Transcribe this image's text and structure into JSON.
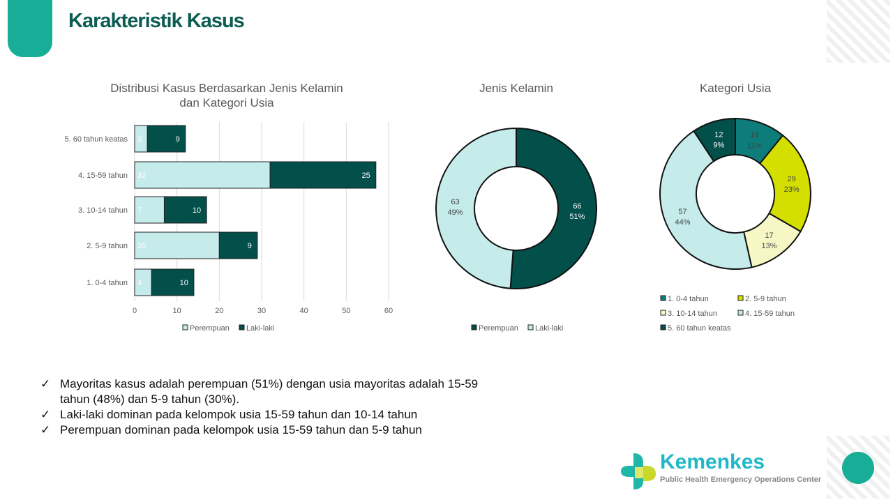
{
  "title": "Karakteristik Kasus",
  "chart_data": [
    {
      "type": "bar",
      "stacked": true,
      "orientation": "horizontal",
      "title": "Distribusi Kasus Berdasarkan Jenis Kelamin dan Kategori Usia",
      "title_lines": [
        "Distribusi Kasus Berdasarkan Jenis Kelamin",
        "dan Kategori Usia"
      ],
      "categories": [
        "5. 60 tahun keatas",
        "4. 15-59 tahun",
        "3. 10-14 tahun",
        "2. 5-9 tahun",
        "1. 0-4 tahun"
      ],
      "series": [
        {
          "name": "Perempuan",
          "color": "#c5ebeb",
          "values": [
            3,
            32,
            7,
            20,
            4
          ]
        },
        {
          "name": "Laki-laki",
          "color": "#034f4a",
          "values": [
            9,
            25,
            10,
            9,
            10
          ]
        }
      ],
      "xlim": [
        0,
        60
      ],
      "xticks": [
        0,
        10,
        20,
        30,
        40,
        50,
        60
      ],
      "grid": true,
      "legend": "bottom"
    },
    {
      "type": "pie",
      "donut": true,
      "title": "Jenis Kelamin",
      "labels": [
        "Perempuan",
        "Laki-laki"
      ],
      "values": [
        66,
        63
      ],
      "percents": [
        "51%",
        "49%"
      ],
      "colors": [
        "#034f4a",
        "#c5ebeb"
      ],
      "legend": "bottom"
    },
    {
      "type": "pie",
      "donut": true,
      "title": "Kategori Usia",
      "labels": [
        "1. 0-4 tahun",
        "2. 5-9 tahun",
        "3. 10-14 tahun",
        "4. 15-59 tahun",
        "5. 60 tahun keatas"
      ],
      "values": [
        14,
        29,
        17,
        57,
        12
      ],
      "percents": [
        "11%",
        "23%",
        "13%",
        "44%",
        "9%"
      ],
      "colors": [
        "#0e7c7b",
        "#d4df00",
        "#f7f7c6",
        "#c5ebeb",
        "#034f4a"
      ],
      "legend": "bottom"
    }
  ],
  "bullets": [
    "Mayoritas kasus adalah perempuan (51%) dengan usia mayoritas adalah 15-59",
    "tahun (48%) dan 5-9 tahun (30%).",
    "Laki-laki dominan pada kelompok usia 15-59 tahun dan 10-14 tahun",
    "Perempuan dominan pada kelompok usia 15-59 tahun dan 5-9 tahun"
  ],
  "check": "✓",
  "logo": {
    "name": "Kemenkes",
    "subtitle": "Public Health Emergency Operations Center"
  }
}
